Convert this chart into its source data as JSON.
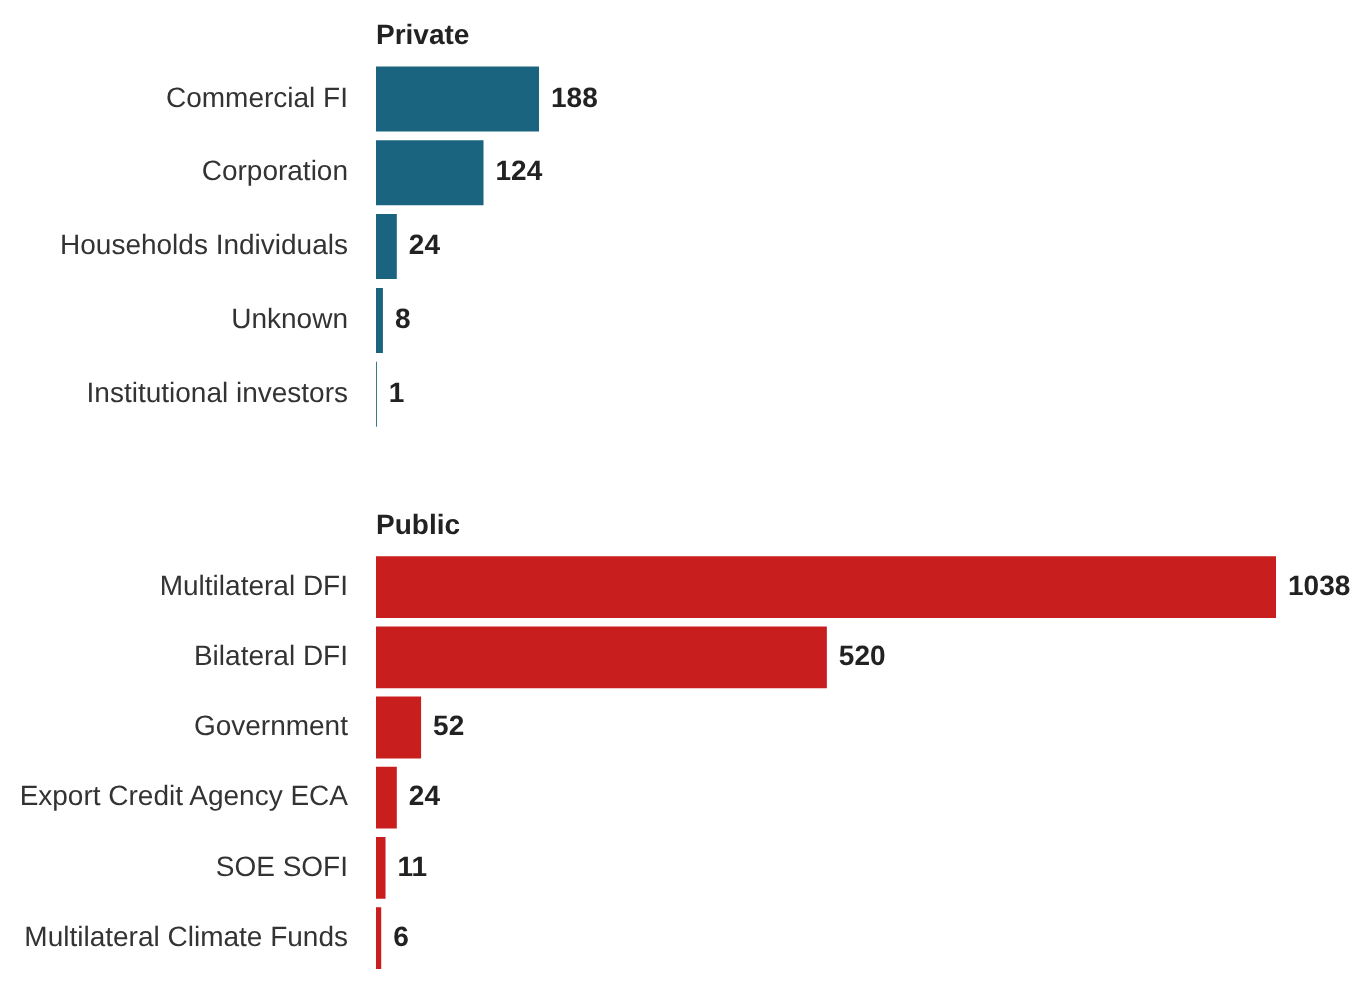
{
  "chart_data": [
    {
      "type": "bar",
      "orientation": "horizontal",
      "title": "Private",
      "categories": [
        "Commercial FI",
        "Corporation",
        "Households Individuals",
        "Unknown",
        "Institutional investors"
      ],
      "values": [
        188,
        124,
        24,
        8,
        1
      ],
      "color": "#1b6480",
      "data_labels": true
    },
    {
      "type": "bar",
      "orientation": "horizontal",
      "title": "Public",
      "categories": [
        "Multilateral DFI",
        "Bilateral DFI",
        "Government",
        "Export Credit Agency ECA",
        "SOE SOFI",
        "Multilateral Climate Funds"
      ],
      "values": [
        1038,
        520,
        52,
        24,
        11,
        6
      ],
      "color": "#c81e1e",
      "data_labels": true
    }
  ]
}
